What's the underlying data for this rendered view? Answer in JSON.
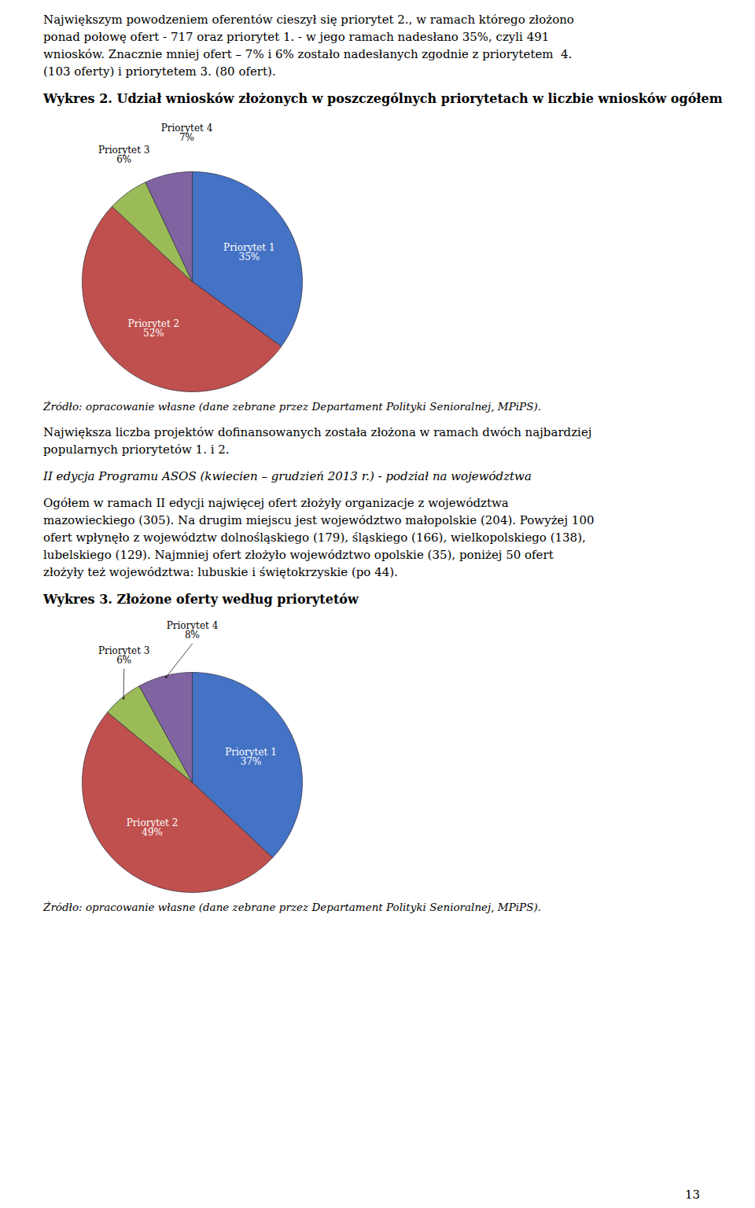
{
  "text_1": [
    "Największym powodzeniem oferentów cieszył się priorytet 2., w ramach którego złożono",
    "ponad połowę ofert - 717 oraz priorytet 1. - w jego ramach nadesłano 35%, czyli 491",
    "wniosków. Znacznie mniej ofert – 7% i 6% zostało nadesłanych zgodnie z priorytetem  4.",
    "(103 oferty) i priorytetem 3. (80 ofert)."
  ],
  "chart_data": [
    {
      "type": "pie",
      "title": "Wykres 2. Udział wniosków złożonych w poszczególnych priorytetach w liczbie wniosków ogółem",
      "categories": [
        "Priorytet 1",
        "Priorytet 2",
        "Priorytet 3",
        "Priorytet 4"
      ],
      "values": [
        35,
        52,
        6,
        7
      ],
      "value_labels": [
        "35%",
        "52%",
        "6%",
        "7%"
      ],
      "colors": [
        "#4472C4",
        "#C0504D",
        "#9BBB59",
        "#8064A2"
      ],
      "data_labels": true,
      "caption": "Źródło: opracowanie własne (dane zebrane przez Departament Polityki Senioralnej, MPiPS)."
    },
    {
      "type": "pie",
      "title": "Wykres 3. Złożone oferty według priorytetów",
      "categories": [
        "Priorytet 1",
        "Priorytet 2",
        "Priorytet 3",
        "Priorytet 4"
      ],
      "values": [
        37,
        49,
        6,
        8
      ],
      "value_labels": [
        "37%",
        "49%",
        "6%",
        "8%"
      ],
      "colors": [
        "#4472C4",
        "#C0504D",
        "#9BBB59",
        "#8064A2"
      ],
      "data_labels": true,
      "caption": "Źródło: opracowanie własne (dane zebrane przez Departament Polityki Senioralnej, MPiPS)."
    }
  ],
  "text_2": [
    "Największa liczba projektów dofinansowanych została złożona w ramach dwóch najbardziej",
    "popularnych priorytetów 1. i 2."
  ],
  "text_3": [
    "II edycja Programu ASOS (kwiecien – grudzień 2013 r.) - podział na województwa"
  ],
  "text_4": [
    "Ogółem w ramach II edycji najwięcej ofert złożyły organizacje z województwa",
    "mazowieckiego (305). Na drugim miejscu jest województwo małopolskie (204). Powyżej 100",
    "ofert wpłynęło z województw dolnośląskiego (179), śląskiego (166), wielkopolskiego (138),",
    "lubelskiego (129). Najmniej ofert złożyło województwo opolskie (35), poniżej 50 ofert",
    "złożyły też województwa: lubuskie i świętokrzyskie (po 44)."
  ],
  "page_number": "13"
}
